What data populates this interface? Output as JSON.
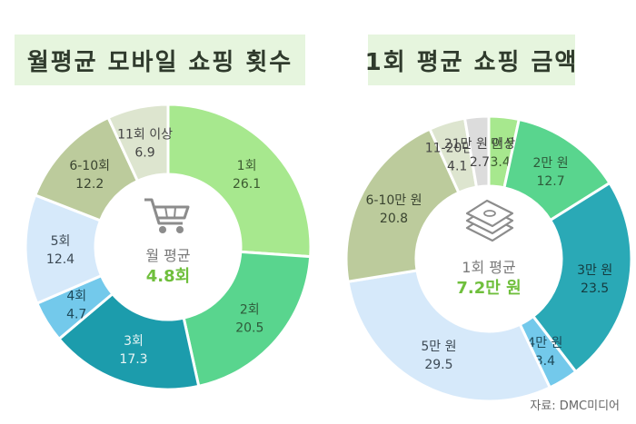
{
  "source": "자료: DMC미디어",
  "chart_data": [
    {
      "type": "pie",
      "title": "월평균 모바일 쇼핑 횟수",
      "center_label": "월 평균",
      "center_value": "4.8회",
      "center_icon": "shopping-cart-icon",
      "categories": [
        "1회",
        "2회",
        "3회",
        "4회",
        "5회",
        "6-10회",
        "11회 이상"
      ],
      "values": [
        26.1,
        20.5,
        17.3,
        4.7,
        12.4,
        12.2,
        6.9
      ],
      "colors": [
        "#a7e88e",
        "#59d58e",
        "#1c9cac",
        "#73c9eb",
        "#d6e9fa",
        "#bccb9c",
        "#dde5cf"
      ]
    },
    {
      "type": "pie",
      "title": "1회 평균 쇼핑 금액",
      "center_label": "1회 평균",
      "center_value": "7.2만 원",
      "center_icon": "money-stack-icon",
      "categories": [
        "1만 원",
        "2만 원",
        "3만 원",
        "4만 원",
        "5만 원",
        "6-10만 원",
        "11-20만 원",
        "21만 원 이상"
      ],
      "values": [
        3.4,
        12.7,
        23.5,
        3.4,
        29.5,
        20.8,
        4.1,
        2.7
      ],
      "colors": [
        "#a7e88e",
        "#59d58e",
        "#2aa9b6",
        "#73c9eb",
        "#d6e9fa",
        "#bccb9c",
        "#dde5cf",
        "#dcdcdc"
      ]
    }
  ]
}
